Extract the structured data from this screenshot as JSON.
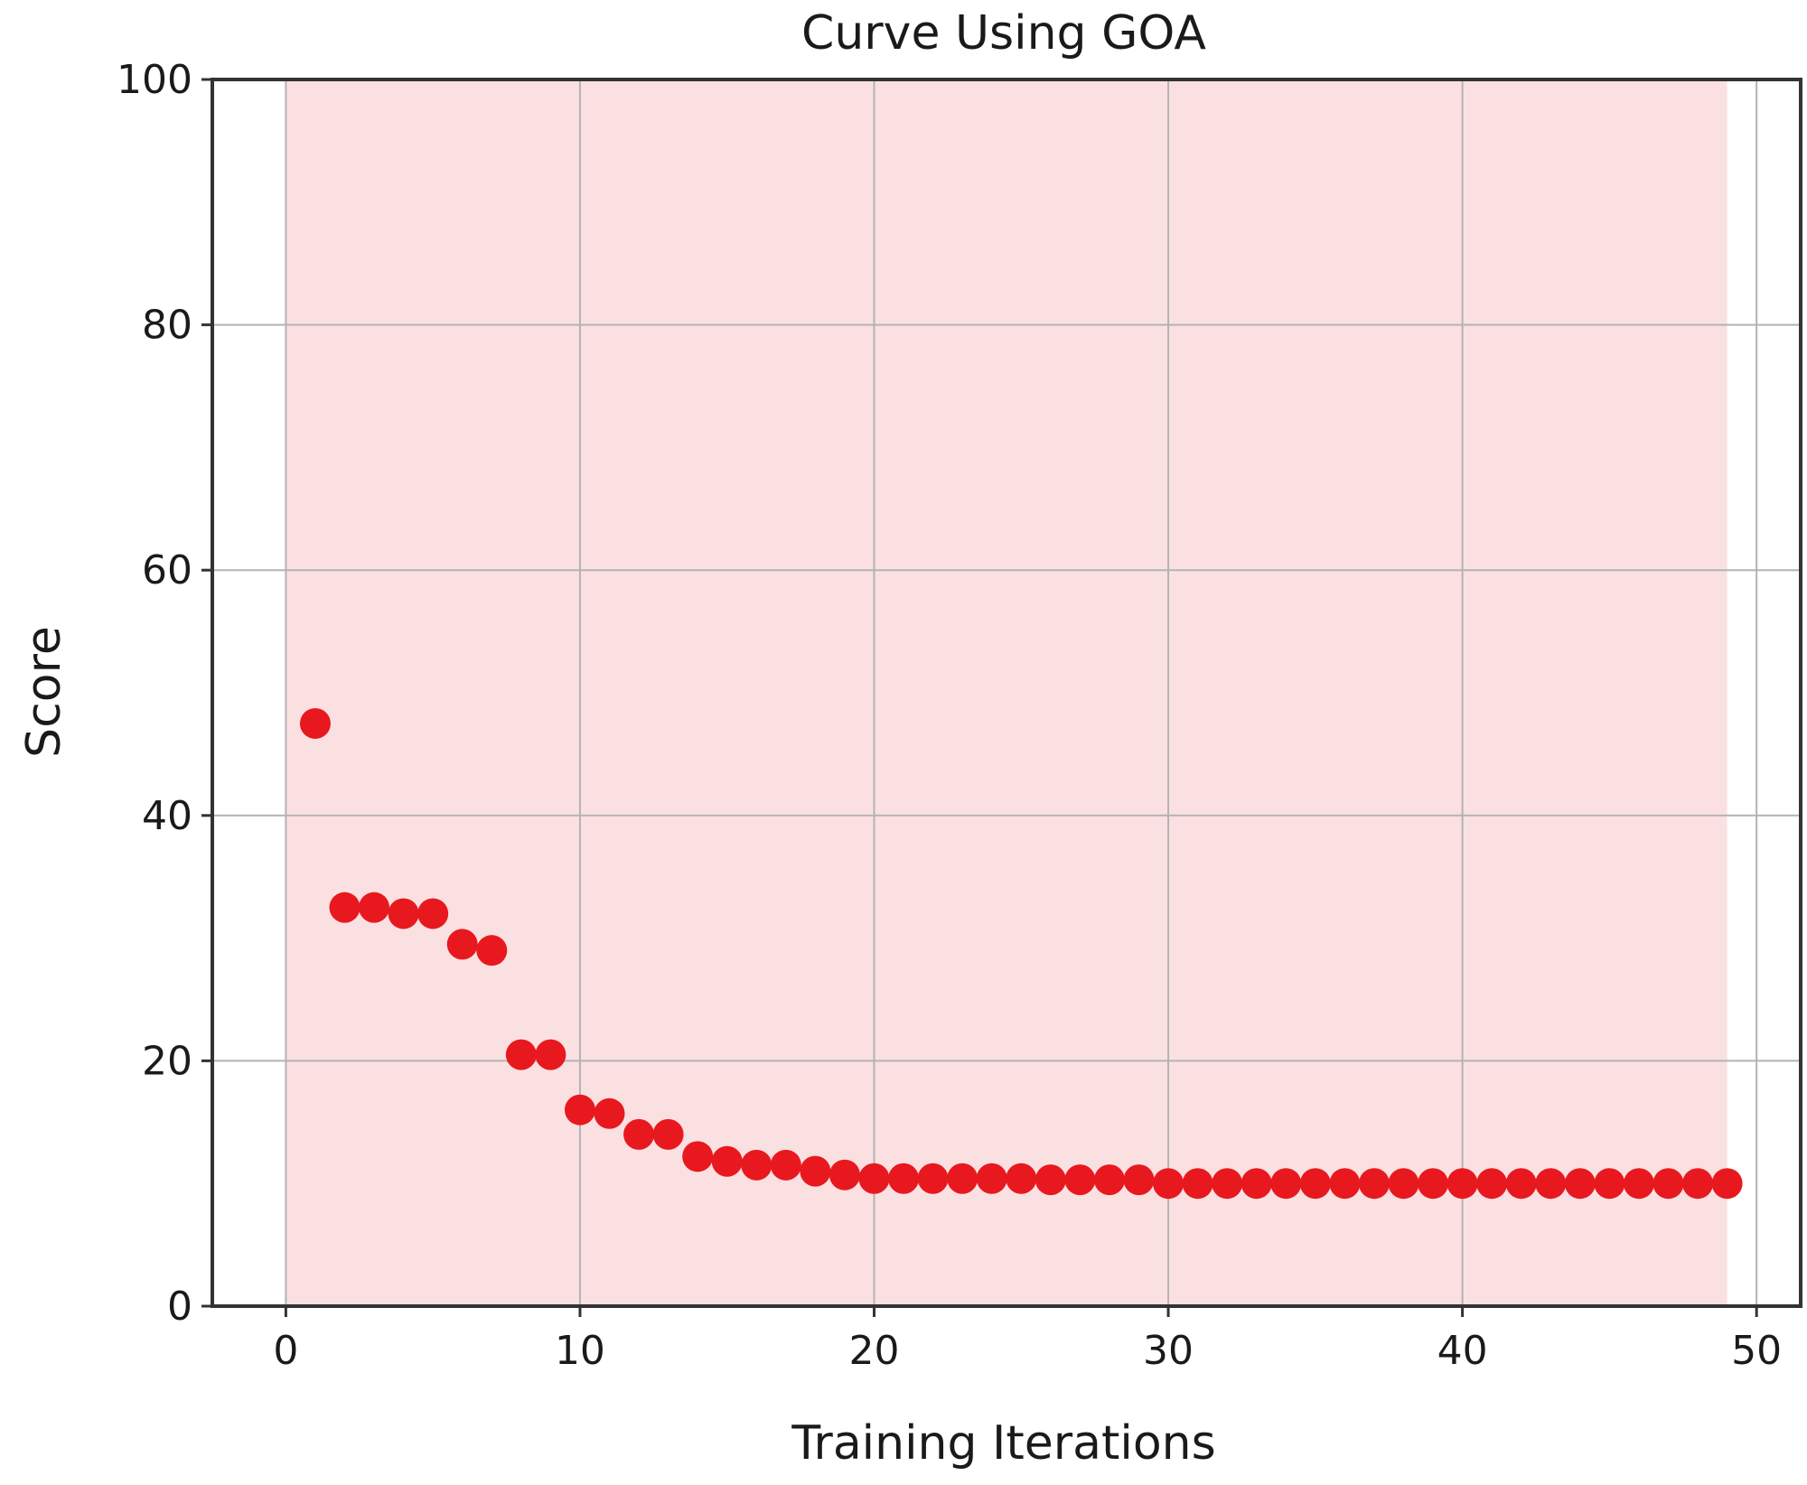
{
  "chart_data": {
    "type": "scatter",
    "title": "Curve Using GOA",
    "xlabel": "Training Iterations",
    "ylabel": "Score",
    "xlim": [
      -2.5,
      51.5
    ],
    "ylim": [
      0,
      100
    ],
    "xticks": [
      0,
      10,
      20,
      30,
      40,
      50
    ],
    "yticks": [
      0,
      20,
      40,
      60,
      80,
      100
    ],
    "grid": true,
    "shaded_region_x": [
      0,
      49
    ],
    "colors": {
      "points": "#e8191e",
      "shaded_region": "#fbe0e2",
      "background": "#ffffff"
    },
    "series": [
      {
        "x": [
          1,
          2,
          3,
          4,
          5,
          6,
          7,
          8,
          9,
          10,
          11,
          12,
          13,
          14,
          15,
          16,
          17,
          18,
          19,
          20,
          21,
          22,
          23,
          24,
          25,
          26,
          27,
          28,
          29,
          30,
          31,
          32,
          33,
          34,
          35,
          36,
          37,
          38,
          39,
          40,
          41,
          42,
          43,
          44,
          45,
          46,
          47,
          48,
          49
        ],
        "y": [
          47.5,
          32.5,
          32.5,
          32.0,
          32.0,
          29.5,
          29.0,
          20.5,
          20.5,
          16.0,
          15.7,
          14.0,
          14.0,
          12.2,
          11.8,
          11.5,
          11.5,
          11.0,
          10.7,
          10.4,
          10.4,
          10.4,
          10.4,
          10.4,
          10.4,
          10.3,
          10.3,
          10.3,
          10.3,
          10.0,
          10.0,
          10.0,
          10.0,
          10.0,
          10.0,
          10.0,
          10.0,
          10.0,
          10.0,
          10.0,
          10.0,
          10.0,
          10.0,
          10.0,
          10.0,
          10.0,
          10.0,
          10.0,
          10.0
        ]
      }
    ]
  }
}
